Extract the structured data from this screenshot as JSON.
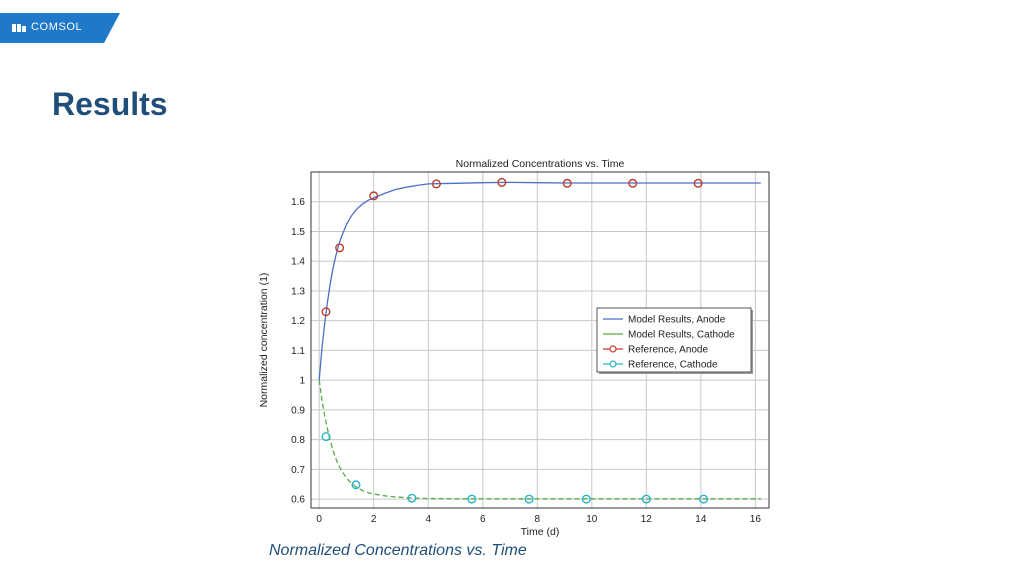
{
  "brand": {
    "name": "COMSOL",
    "color": "#1f78c8"
  },
  "slide": {
    "title": "Results",
    "caption": "Normalized Concentrations vs. Time",
    "title_color": "#1f4e79"
  },
  "chart_data": {
    "type": "line",
    "title": "Normalized Concentrations vs. Time",
    "xlabel": "Time (d)",
    "ylabel": "Normalized concentration (1)",
    "xlim": [
      -0.3,
      16.5
    ],
    "ylim": [
      0.57,
      1.7
    ],
    "xticks": [
      "0",
      "2",
      "4",
      "6",
      "8",
      "10",
      "12",
      "14",
      "16"
    ],
    "yticks": [
      "0.6",
      "0.7",
      "0.8",
      "0.9",
      "1",
      "1.1",
      "1.2",
      "1.3",
      "1.4",
      "1.5",
      "1.6"
    ],
    "grid": true,
    "legend_position": "center-right",
    "series": [
      {
        "name": "Model Results, Anode",
        "style": "line",
        "color": "#4a6fc8",
        "x": [
          0,
          0.1,
          0.2,
          0.3,
          0.4,
          0.5,
          0.6,
          0.7,
          0.8,
          1.0,
          1.2,
          1.4,
          1.6,
          1.8,
          2.0,
          2.4,
          2.8,
          3.2,
          3.6,
          4.0,
          5,
          6,
          7,
          8,
          9,
          10,
          11,
          12,
          13,
          14,
          15,
          16.2
        ],
        "y": [
          1.0,
          1.106,
          1.188,
          1.261,
          1.322,
          1.372,
          1.414,
          1.449,
          1.478,
          1.523,
          1.555,
          1.577,
          1.593,
          1.605,
          1.613,
          1.628,
          1.641,
          1.649,
          1.655,
          1.66,
          1.662,
          1.664,
          1.665,
          1.664,
          1.663,
          1.663,
          1.663,
          1.663,
          1.663,
          1.663,
          1.663,
          1.663
        ]
      },
      {
        "name": "Model Results, Cathode",
        "style": "line",
        "color": "#55aa44",
        "x": [
          0,
          0.1,
          0.2,
          0.3,
          0.4,
          0.5,
          0.6,
          0.7,
          0.8,
          1.0,
          1.2,
          1.4,
          1.6,
          1.8,
          2.0,
          2.4,
          2.8,
          3.2,
          3.6,
          4.0,
          5,
          6,
          7,
          8,
          9,
          10,
          11,
          12,
          13,
          14,
          15,
          16.2
        ],
        "y": [
          1.0,
          0.934,
          0.882,
          0.837,
          0.798,
          0.766,
          0.739,
          0.717,
          0.699,
          0.671,
          0.651,
          0.638,
          0.628,
          0.621,
          0.617,
          0.611,
          0.607,
          0.605,
          0.603,
          0.602,
          0.601,
          0.601,
          0.601,
          0.601,
          0.601,
          0.601,
          0.601,
          0.601,
          0.601,
          0.601,
          0.601,
          0.601
        ]
      },
      {
        "name": "Reference, Anode",
        "style": "markers",
        "color": "#c0392b",
        "x": [
          0.25,
          0.75,
          2.0,
          4.3,
          6.7,
          9.1,
          11.5,
          13.9
        ],
        "y": [
          1.23,
          1.445,
          1.62,
          1.66,
          1.665,
          1.662,
          1.662,
          1.662
        ]
      },
      {
        "name": "Reference, Cathode",
        "style": "markers",
        "color": "#27b5c8",
        "x": [
          0.25,
          1.35,
          3.4,
          5.6,
          7.7,
          9.8,
          12.0,
          14.1
        ],
        "y": [
          0.81,
          0.648,
          0.603,
          0.6,
          0.6,
          0.6,
          0.6,
          0.6
        ]
      }
    ]
  }
}
